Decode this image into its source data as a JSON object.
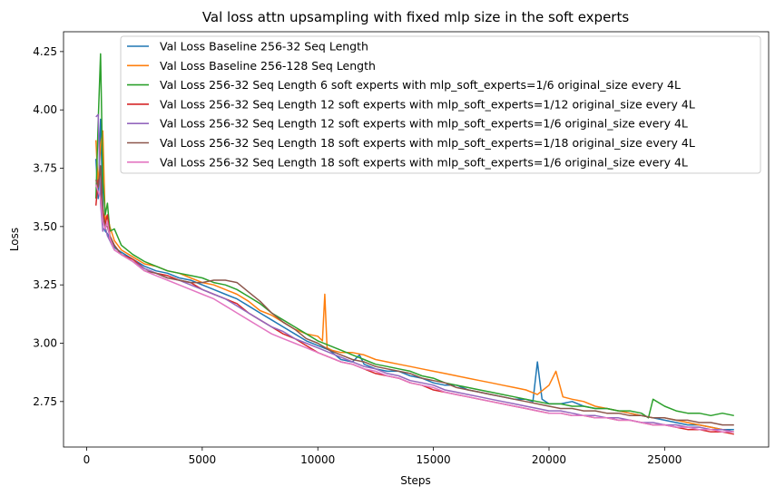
{
  "chart_data": {
    "type": "line",
    "title": "Val loss attn upsampling with fixed mlp size in the soft experts",
    "xlabel": "Steps",
    "ylabel": "Loss",
    "xlim": [
      -1000,
      29500
    ],
    "ylim": [
      2.555,
      4.335
    ],
    "xticks": [
      0,
      5000,
      10000,
      15000,
      20000,
      25000
    ],
    "xtick_labels": [
      "0",
      "5000",
      "10000",
      "15000",
      "20000",
      "25000"
    ],
    "yticks": [
      2.75,
      3.0,
      3.25,
      3.5,
      3.75,
      4.0,
      4.25
    ],
    "ytick_labels": [
      "2.75",
      "3.00",
      "3.25",
      "3.50",
      "3.75",
      "4.00",
      "4.25"
    ],
    "grid": false,
    "legend_position": "top-right",
    "series": [
      {
        "name": "Val Loss Baseline 256-32 Seq Length",
        "color": "#1f77b4",
        "x": [
          400,
          500,
          600,
          700,
          800,
          900,
          1000,
          1200,
          1500,
          2000,
          2500,
          3000,
          3500,
          4000,
          4500,
          5000,
          5500,
          6000,
          6500,
          7000,
          7500,
          8000,
          8500,
          9000,
          9500,
          10000,
          10500,
          11000,
          11500,
          11800,
          12000,
          12500,
          13000,
          13500,
          14000,
          14500,
          15000,
          15500,
          16000,
          16500,
          17000,
          17500,
          18000,
          18500,
          19000,
          19300,
          19500,
          19700,
          20000,
          20500,
          21000,
          21500,
          22000,
          22500,
          23000,
          23500,
          24000,
          24500,
          25000,
          25500,
          26000,
          26500,
          27000,
          27500,
          28000
        ],
        "y": [
          3.79,
          3.62,
          3.96,
          3.58,
          3.48,
          3.47,
          3.45,
          3.41,
          3.39,
          3.36,
          3.33,
          3.31,
          3.3,
          3.28,
          3.27,
          3.25,
          3.23,
          3.21,
          3.19,
          3.16,
          3.13,
          3.1,
          3.07,
          3.04,
          3.01,
          2.99,
          2.97,
          2.93,
          2.92,
          2.95,
          2.91,
          2.89,
          2.88,
          2.88,
          2.86,
          2.85,
          2.83,
          2.82,
          2.82,
          2.8,
          2.79,
          2.78,
          2.77,
          2.76,
          2.76,
          2.75,
          2.92,
          2.76,
          2.74,
          2.74,
          2.75,
          2.73,
          2.72,
          2.72,
          2.71,
          2.7,
          2.69,
          2.68,
          2.67,
          2.66,
          2.65,
          2.65,
          2.64,
          2.63,
          2.63
        ]
      },
      {
        "name": "Val Loss Baseline 256-128 Seq Length",
        "color": "#ff7f0e",
        "x": [
          400,
          500,
          600,
          700,
          800,
          900,
          1000,
          1200,
          1500,
          2000,
          2500,
          3000,
          3500,
          4000,
          4500,
          5000,
          5500,
          6000,
          6500,
          7000,
          7500,
          8000,
          8500,
          9000,
          9500,
          10000,
          10200,
          10300,
          10400,
          10600,
          11000,
          11500,
          12000,
          12500,
          13000,
          13500,
          14000,
          14500,
          15000,
          15500,
          16000,
          16500,
          17000,
          17500,
          18000,
          18500,
          19000,
          19500,
          20000,
          20300,
          20600,
          21000,
          21500,
          22000,
          22500,
          23000,
          23500,
          24000,
          24500,
          25000,
          25500,
          26000,
          26500,
          27000,
          27500,
          28000
        ],
        "y": [
          3.87,
          3.67,
          3.85,
          3.91,
          3.53,
          3.55,
          3.5,
          3.44,
          3.4,
          3.37,
          3.34,
          3.33,
          3.31,
          3.3,
          3.28,
          3.26,
          3.25,
          3.23,
          3.21,
          3.18,
          3.14,
          3.12,
          3.09,
          3.06,
          3.04,
          3.03,
          3.01,
          3.21,
          2.98,
          2.97,
          2.96,
          2.96,
          2.95,
          2.93,
          2.92,
          2.91,
          2.9,
          2.89,
          2.88,
          2.87,
          2.86,
          2.85,
          2.84,
          2.83,
          2.82,
          2.81,
          2.8,
          2.78,
          2.82,
          2.88,
          2.77,
          2.76,
          2.75,
          2.73,
          2.72,
          2.71,
          2.7,
          2.69,
          2.68,
          2.68,
          2.67,
          2.66,
          2.65,
          2.64,
          2.63,
          2.62
        ]
      },
      {
        "name": "Val Loss 256-32 Seq Length 6 soft experts with mlp_soft_experts=1/6 original_size every 4L",
        "color": "#2ca02c",
        "x": [
          400,
          500,
          600,
          700,
          800,
          900,
          1000,
          1200,
          1500,
          2000,
          2500,
          3000,
          3500,
          4000,
          4500,
          5000,
          5500,
          6000,
          6500,
          7000,
          7500,
          8000,
          8500,
          9000,
          9500,
          10000,
          10500,
          11000,
          11500,
          12000,
          12500,
          13000,
          13500,
          14000,
          14500,
          15000,
          15500,
          16000,
          16500,
          17000,
          17500,
          18000,
          18500,
          19000,
          19500,
          20000,
          20500,
          21000,
          21500,
          22000,
          22500,
          23000,
          23500,
          24000,
          24300,
          24500,
          25000,
          25500,
          26000,
          26500,
          27000,
          27500,
          28000
        ],
        "y": [
          3.62,
          3.95,
          4.24,
          3.7,
          3.55,
          3.6,
          3.48,
          3.49,
          3.42,
          3.38,
          3.35,
          3.33,
          3.31,
          3.3,
          3.29,
          3.28,
          3.26,
          3.25,
          3.23,
          3.2,
          3.17,
          3.13,
          3.1,
          3.07,
          3.04,
          3.01,
          2.99,
          2.97,
          2.95,
          2.93,
          2.91,
          2.9,
          2.89,
          2.88,
          2.86,
          2.85,
          2.83,
          2.82,
          2.81,
          2.8,
          2.79,
          2.78,
          2.77,
          2.76,
          2.75,
          2.74,
          2.74,
          2.73,
          2.73,
          2.72,
          2.72,
          2.71,
          2.71,
          2.7,
          2.68,
          2.76,
          2.73,
          2.71,
          2.7,
          2.7,
          2.69,
          2.7,
          2.69
        ]
      },
      {
        "name": "Val Loss 256-32 Seq Length 12 soft experts with mlp_soft_experts=1/12 original_size every 4L",
        "color": "#d62728",
        "x": [
          400,
          500,
          600,
          700,
          800,
          900,
          1000,
          1200,
          1500,
          2000,
          2500,
          3000,
          3500,
          4000,
          4500,
          5000,
          5500,
          6000,
          6500,
          7000,
          7500,
          8000,
          8500,
          9000,
          9500,
          10000,
          10500,
          11000,
          11500,
          12000,
          12500,
          13000,
          13500,
          14000,
          14500,
          15000,
          15500,
          16000,
          16500,
          17000,
          17500,
          18000,
          18500,
          19000,
          19500,
          20000,
          20500,
          21000,
          21500,
          22000,
          22500,
          23000,
          23500,
          24000,
          24500,
          25000,
          25500,
          26000,
          26500,
          27000,
          27500,
          28000
        ],
        "y": [
          3.59,
          3.7,
          3.68,
          3.57,
          3.51,
          3.55,
          3.46,
          3.42,
          3.38,
          3.36,
          3.32,
          3.3,
          3.29,
          3.27,
          3.26,
          3.23,
          3.21,
          3.19,
          3.17,
          3.13,
          3.1,
          3.07,
          3.04,
          3.02,
          2.99,
          2.96,
          2.94,
          2.92,
          2.91,
          2.89,
          2.87,
          2.86,
          2.85,
          2.83,
          2.82,
          2.8,
          2.79,
          2.78,
          2.77,
          2.76,
          2.75,
          2.74,
          2.73,
          2.72,
          2.71,
          2.7,
          2.7,
          2.69,
          2.69,
          2.68,
          2.68,
          2.67,
          2.67,
          2.66,
          2.65,
          2.65,
          2.64,
          2.63,
          2.63,
          2.62,
          2.62,
          2.61
        ]
      },
      {
        "name": "Val Loss 256-32 Seq Length 12 soft experts with mlp_soft_experts=1/6 original_size every 4L",
        "color": "#9467bd",
        "x": [
          400,
          500,
          600,
          700,
          800,
          900,
          1000,
          1200,
          1500,
          2000,
          2500,
          3000,
          3500,
          4000,
          4500,
          5000,
          5500,
          6000,
          6500,
          7000,
          7500,
          8000,
          8500,
          9000,
          9500,
          10000,
          10500,
          11000,
          11500,
          12000,
          12500,
          13000,
          13500,
          14000,
          14500,
          15000,
          15500,
          16000,
          16500,
          17000,
          17500,
          18000,
          18500,
          19000,
          19500,
          20000,
          20500,
          21000,
          21500,
          22000,
          22500,
          23000,
          23500,
          24000,
          24500,
          25000,
          25500,
          26000,
          26500,
          27000,
          27500,
          28000
        ],
        "y": [
          3.97,
          3.98,
          3.6,
          3.48,
          3.5,
          3.46,
          3.44,
          3.4,
          3.38,
          3.35,
          3.32,
          3.3,
          3.28,
          3.27,
          3.25,
          3.23,
          3.21,
          3.19,
          3.16,
          3.13,
          3.1,
          3.07,
          3.05,
          3.02,
          3.0,
          2.98,
          2.96,
          2.94,
          2.92,
          2.9,
          2.89,
          2.87,
          2.86,
          2.84,
          2.83,
          2.82,
          2.8,
          2.79,
          2.78,
          2.77,
          2.76,
          2.75,
          2.74,
          2.73,
          2.72,
          2.71,
          2.71,
          2.7,
          2.69,
          2.69,
          2.68,
          2.68,
          2.67,
          2.66,
          2.66,
          2.65,
          2.65,
          2.64,
          2.64,
          2.63,
          2.63,
          2.62
        ]
      },
      {
        "name": "Val Loss 256-32 Seq Length 18 soft experts with mlp_soft_experts=1/18 original_size every 4L",
        "color": "#8c564b",
        "x": [
          400,
          500,
          600,
          700,
          800,
          900,
          1000,
          1200,
          1500,
          2000,
          2500,
          3000,
          3500,
          4000,
          4500,
          5000,
          5500,
          6000,
          6500,
          7000,
          7500,
          8000,
          8500,
          9000,
          9500,
          10000,
          10500,
          11000,
          11500,
          12000,
          12500,
          13000,
          13500,
          14000,
          14500,
          15000,
          15500,
          16000,
          16500,
          17000,
          17500,
          18000,
          18500,
          19000,
          19500,
          20000,
          20500,
          21000,
          21500,
          22000,
          22500,
          23000,
          23500,
          24000,
          24500,
          25000,
          25500,
          26000,
          26500,
          27000,
          27500,
          28000
        ],
        "y": [
          3.7,
          3.67,
          3.76,
          3.55,
          3.5,
          3.5,
          3.46,
          3.42,
          3.38,
          3.35,
          3.31,
          3.3,
          3.28,
          3.27,
          3.26,
          3.26,
          3.27,
          3.27,
          3.26,
          3.22,
          3.18,
          3.13,
          3.09,
          3.06,
          3.02,
          3.0,
          2.97,
          2.95,
          2.93,
          2.92,
          2.9,
          2.89,
          2.88,
          2.87,
          2.85,
          2.84,
          2.83,
          2.81,
          2.8,
          2.79,
          2.78,
          2.77,
          2.76,
          2.75,
          2.74,
          2.73,
          2.72,
          2.72,
          2.71,
          2.71,
          2.7,
          2.7,
          2.69,
          2.69,
          2.68,
          2.68,
          2.67,
          2.67,
          2.66,
          2.66,
          2.65,
          2.65
        ]
      },
      {
        "name": "Val Loss 256-32 Seq Length 18 soft experts with mlp_soft_experts=1/6 original_size every 4L",
        "color": "#e377c2",
        "x": [
          400,
          500,
          600,
          700,
          800,
          900,
          1000,
          1200,
          1500,
          2000,
          2500,
          3000,
          3500,
          4000,
          4500,
          5000,
          5500,
          6000,
          6500,
          7000,
          7500,
          8000,
          8500,
          9000,
          9500,
          10000,
          10500,
          11000,
          11500,
          12000,
          12500,
          13000,
          13500,
          14000,
          14500,
          15000,
          15500,
          16000,
          16500,
          17000,
          17500,
          18000,
          18500,
          19000,
          19500,
          20000,
          20500,
          21000,
          21500,
          22000,
          22500,
          23000,
          23500,
          24000,
          24500,
          25000,
          25500,
          26000,
          26500,
          27000,
          27500,
          28000
        ],
        "y": [
          3.68,
          3.65,
          3.62,
          3.52,
          3.49,
          3.52,
          3.45,
          3.4,
          3.38,
          3.35,
          3.31,
          3.29,
          3.27,
          3.25,
          3.23,
          3.21,
          3.19,
          3.16,
          3.13,
          3.1,
          3.07,
          3.04,
          3.02,
          3.0,
          2.98,
          2.96,
          2.94,
          2.92,
          2.91,
          2.89,
          2.88,
          2.86,
          2.85,
          2.83,
          2.82,
          2.81,
          2.79,
          2.78,
          2.77,
          2.76,
          2.75,
          2.74,
          2.73,
          2.72,
          2.71,
          2.7,
          2.7,
          2.69,
          2.69,
          2.68,
          2.68,
          2.67,
          2.67,
          2.66,
          2.65,
          2.65,
          2.64,
          2.64,
          2.63,
          2.63,
          2.62,
          2.62
        ]
      }
    ]
  }
}
